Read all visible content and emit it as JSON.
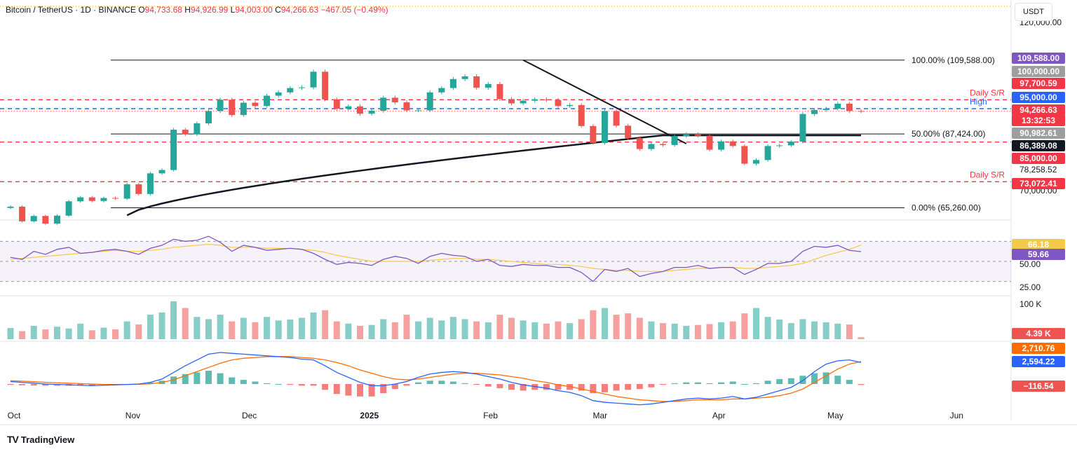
{
  "header": {
    "symbol": "Bitcoin / TetherUS · 1D · BINANCE",
    "o_label": "O",
    "o": "94,733.68",
    "h_label": "H",
    "h": "94,926.99",
    "l_label": "L",
    "l": "94,003.00",
    "c_label": "C",
    "c": "94,266.63",
    "chg": "−467.05 (−0.49%)"
  },
  "currency_button": "USDT",
  "branding": "TradingView",
  "colors": {
    "up": "#26a69a",
    "down": "#ef5350",
    "resistance": "#f23645",
    "support_blue": "#2962ff",
    "ema": "#131722",
    "rsi": "#7e57c2",
    "rsi_ma": "#f7c948",
    "macd": "#2962ff",
    "signal": "#ff6d00"
  },
  "chart_data": [
    {
      "type": "candlestick",
      "pane": "price",
      "series_name": "Bitcoin / TetherUS",
      "x": [
        "2024-09-30",
        "2024-10-03",
        "2024-10-06",
        "2024-10-09",
        "2024-10-12",
        "2024-10-15",
        "2024-10-18",
        "2024-10-21",
        "2024-10-24",
        "2024-10-27",
        "2024-10-30",
        "2024-11-02",
        "2024-11-05",
        "2024-11-08",
        "2024-11-11",
        "2024-11-14",
        "2024-11-17",
        "2024-11-20",
        "2024-11-23",
        "2024-11-26",
        "2024-11-29",
        "2024-12-02",
        "2024-12-05",
        "2024-12-08",
        "2024-12-11",
        "2024-12-14",
        "2024-12-17",
        "2024-12-20",
        "2024-12-23",
        "2024-12-26",
        "2024-12-29",
        "2025-01-01",
        "2025-01-04",
        "2025-01-07",
        "2025-01-10",
        "2025-01-13",
        "2025-01-16",
        "2025-01-19",
        "2025-01-22",
        "2025-01-25",
        "2025-01-28",
        "2025-01-31",
        "2025-02-03",
        "2025-02-06",
        "2025-02-09",
        "2025-02-12",
        "2025-02-15",
        "2025-02-18",
        "2025-02-21",
        "2025-02-24",
        "2025-02-27",
        "2025-03-02",
        "2025-03-05",
        "2025-03-08",
        "2025-03-11",
        "2025-03-14",
        "2025-03-17",
        "2025-03-20",
        "2025-03-23",
        "2025-03-26",
        "2025-03-29",
        "2025-04-01",
        "2025-04-04",
        "2025-04-07",
        "2025-04-10",
        "2025-04-13",
        "2025-04-16",
        "2025-04-19",
        "2025-04-22",
        "2025-04-25",
        "2025-04-28",
        "2025-05-01",
        "2025-05-04",
        "2025-05-06"
      ],
      "close": [
        65600,
        61200,
        62800,
        60500,
        62900,
        67200,
        68400,
        67300,
        68200,
        68000,
        72300,
        69400,
        75600,
        76600,
        88700,
        87300,
        90600,
        94300,
        97700,
        93100,
        96800,
        95800,
        98900,
        99900,
        101200,
        101400,
        106100,
        97800,
        95000,
        95700,
        93500,
        94400,
        98300,
        96900,
        94500,
        94500,
        99900,
        101200,
        103900,
        104700,
        101300,
        102400,
        97900,
        96600,
        97400,
        97800,
        97600,
        95800,
        96100,
        89800,
        84700,
        94300,
        89900,
        86200,
        82900,
        84400,
        84100,
        86800,
        87400,
        86900,
        82700,
        85200,
        83800,
        78500,
        79600,
        83800,
        84000,
        85100,
        93400,
        94600,
        95000,
        96500,
        94300,
        94266.63
      ],
      "ylim": [
        62000,
        123000
      ],
      "price_axis_labels": [
        "120,000.00",
        "100,000.00",
        "90,982.61",
        "78,258.52",
        "70,000.00"
      ],
      "time_axis_labels": [
        "Oct",
        "Nov",
        "Dec",
        "2025",
        "Feb",
        "Mar",
        "Apr",
        "May",
        "Jun"
      ],
      "fib_levels": [
        {
          "label": "100.00% (109,588.00)",
          "value": 109588
        },
        {
          "label": "50.00% (87,424.00)",
          "value": 87424
        },
        {
          "label": "0.00% (65,260.00)",
          "value": 65260
        }
      ],
      "horizontal_levels": [
        {
          "value": 109588,
          "tag": "109,588.00",
          "tag_color": "#7e57c2"
        },
        {
          "value": 100000,
          "tag": "100,000.00",
          "tag_color": "#9e9e9e"
        },
        {
          "value": 97700.59,
          "tag": "97,700.59",
          "tag_color": "#f23645",
          "line_label": "Daily S/R"
        },
        {
          "value": 95000,
          "tag": "95,000.00",
          "tag_color": "#2962ff",
          "line_label": "High"
        },
        {
          "value": 94266.63,
          "tag": "94,266.63",
          "tag_color": "#f23645"
        },
        {
          "value": 94266.63,
          "tag": "13:32:53",
          "tag_color": "#f23645"
        },
        {
          "value": 90982.61,
          "tag": "90,982.61",
          "tag_color": "#9e9e9e"
        },
        {
          "value": 86389.08,
          "tag": "86,389.08",
          "tag_color": "#131722"
        },
        {
          "value": 85000,
          "tag": "85,000.00",
          "tag_color": "#f23645"
        },
        {
          "value": 73072.41,
          "tag": "73,072.41",
          "tag_color": "#f23645",
          "line_label": "Daily S/R"
        }
      ]
    },
    {
      "type": "line",
      "pane": "rsi",
      "series": [
        {
          "values": [
            54,
            52,
            60,
            57,
            62,
            64,
            58,
            59,
            61,
            62,
            60,
            57,
            63,
            66,
            72,
            70,
            71,
            75,
            69,
            60,
            66,
            64,
            61,
            62,
            63,
            62,
            58,
            52,
            47,
            49,
            48,
            46,
            52,
            55,
            53,
            48,
            55,
            58,
            56,
            55,
            50,
            52,
            46,
            45,
            47,
            46,
            46,
            44,
            44,
            39,
            30,
            42,
            40,
            43,
            35,
            38,
            40,
            44,
            44,
            46,
            43,
            44,
            44,
            37,
            42,
            48,
            48,
            50,
            60,
            65,
            64,
            66,
            61,
            59.66
          ]
        }
      ],
      "rsi_ma": [
        52,
        53,
        54,
        55,
        56,
        57,
        58,
        59,
        60,
        61,
        60,
        60,
        61,
        62,
        64,
        65,
        66,
        67,
        66,
        64,
        64,
        64,
        63,
        63,
        63,
        62,
        61,
        59,
        56,
        54,
        52,
        50,
        50,
        50,
        50,
        50,
        51,
        52,
        53,
        53,
        52,
        52,
        51,
        50,
        49,
        48,
        47,
        47,
        46,
        45,
        43,
        42,
        41,
        41,
        40,
        40,
        40,
        41,
        42,
        43,
        43,
        44,
        44,
        43,
        43,
        44,
        45,
        46,
        48,
        52,
        56,
        59,
        62,
        66.18
      ],
      "levels": [
        70,
        50,
        30
      ],
      "axis_labels": [
        "66.18",
        "59.66",
        "50.00",
        "25.00"
      ]
    },
    {
      "type": "bar",
      "pane": "volume",
      "values": [
        25,
        18,
        30,
        22,
        28,
        24,
        35,
        20,
        26,
        22,
        40,
        33,
        55,
        60,
        85,
        70,
        50,
        45,
        55,
        40,
        48,
        38,
        50,
        42,
        44,
        48,
        60,
        65,
        40,
        35,
        30,
        32,
        45,
        38,
        55,
        40,
        48,
        42,
        50,
        45,
        40,
        38,
        55,
        48,
        42,
        38,
        35,
        40,
        36,
        45,
        65,
        70,
        55,
        58,
        48,
        40,
        36,
        35,
        30,
        32,
        34,
        38,
        40,
        58,
        70,
        50,
        44,
        36,
        45,
        40,
        38,
        35,
        33,
        4.39
      ],
      "axis_labels": [
        "100 K",
        "4.39 K"
      ]
    },
    {
      "type": "line",
      "pane": "macd",
      "series": [
        {
          "values": [
            300,
            200,
            100,
            0,
            -50,
            -100,
            -150,
            -200,
            -150,
            -100,
            -50,
            0,
            200,
            600,
            1400,
            2200,
            2900,
            3600,
            3800,
            3700,
            3600,
            3500,
            3400,
            3300,
            3200,
            3000,
            2900,
            2200,
            1400,
            800,
            200,
            -200,
            -200,
            0,
            300,
            800,
            1200,
            1400,
            1500,
            1400,
            1200,
            900,
            600,
            200,
            -100,
            -300,
            -500,
            -800,
            -1000,
            -1400,
            -2000,
            -2200,
            -2300,
            -2400,
            -2500,
            -2400,
            -2200,
            -2000,
            -1800,
            -1700,
            -1800,
            -1700,
            -1500,
            -1800,
            -1600,
            -1200,
            -800,
            -400,
            400,
            1500,
            2400,
            2800,
            2900,
            2594.22
          ]
        },
        {
          "values": [
            400,
            350,
            280,
            200,
            150,
            100,
            50,
            0,
            -50,
            -60,
            -50,
            -30,
            20,
            200,
            500,
            1000,
            1500,
            2000,
            2500,
            2900,
            3100,
            3200,
            3300,
            3300,
            3300,
            3200,
            3100,
            2900,
            2600,
            2200,
            1700,
            1300,
            900,
            600,
            500,
            600,
            800,
            1000,
            1200,
            1300,
            1300,
            1200,
            1100,
            900,
            700,
            400,
            200,
            -100,
            -300,
            -600,
            -900,
            -1200,
            -1500,
            -1700,
            -1900,
            -2000,
            -2100,
            -2100,
            -2000,
            -1900,
            -1900,
            -1900,
            -1800,
            -1800,
            -1700,
            -1600,
            -1400,
            -1100,
            -600,
            200,
            1000,
            1800,
            2400,
            2710.76
          ]
        }
      ],
      "histogram": [
        -100,
        -150,
        -180,
        -200,
        -200,
        -200,
        -200,
        -200,
        -100,
        -40,
        0,
        30,
        180,
        400,
        900,
        1200,
        1400,
        1600,
        1300,
        800,
        500,
        300,
        100,
        0,
        -100,
        -200,
        -200,
        -700,
        -1200,
        -1400,
        -1500,
        -1500,
        -1100,
        -600,
        -200,
        200,
        400,
        400,
        300,
        100,
        -100,
        -300,
        -500,
        -700,
        -800,
        -700,
        -700,
        -700,
        -700,
        -800,
        -1100,
        -1000,
        -800,
        -700,
        -600,
        -400,
        -100,
        100,
        200,
        200,
        100,
        200,
        300,
        0,
        100,
        400,
        600,
        700,
        1000,
        1300,
        1400,
        1000,
        500,
        -116.54
      ],
      "axis_labels": [
        "2,710.76",
        "2,594.22",
        "−116.54"
      ]
    }
  ]
}
